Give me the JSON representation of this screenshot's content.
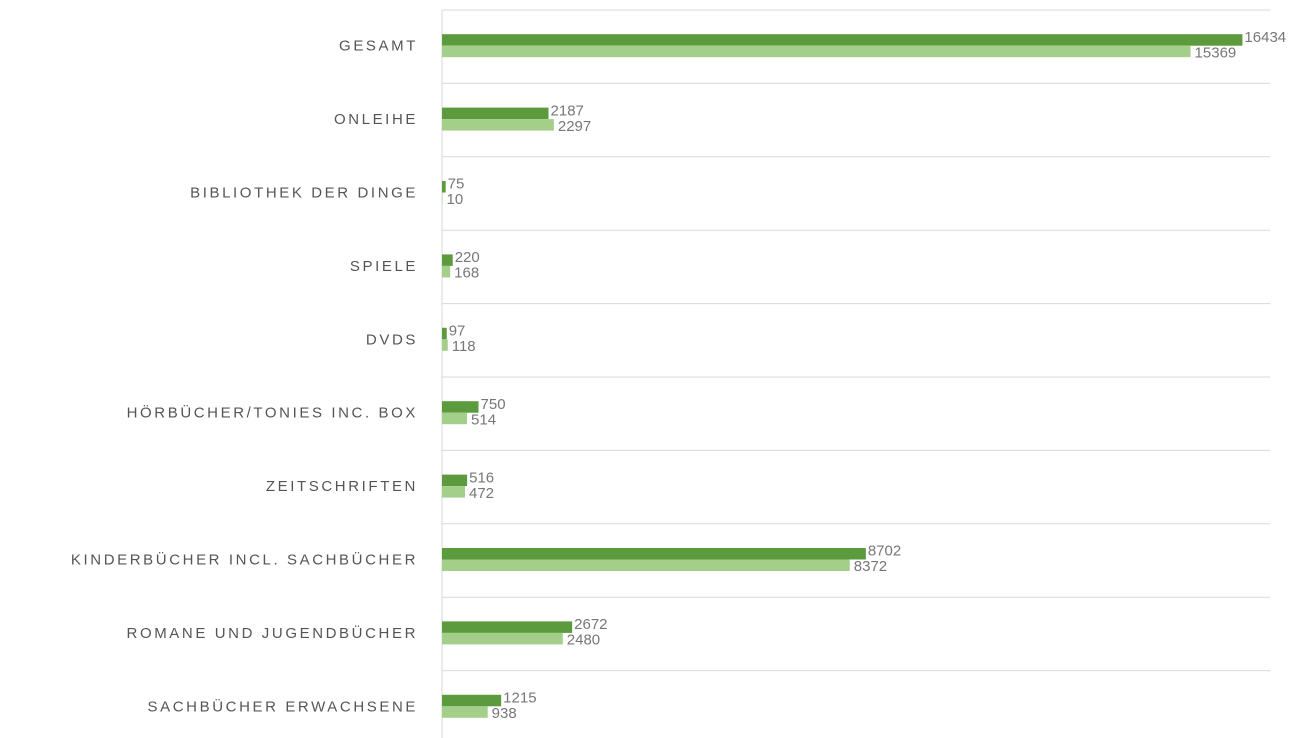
{
  "chart_data": {
    "type": "bar",
    "orientation": "horizontal",
    "categories": [
      "GESAMT",
      "ONLEIHE",
      "BIBLIOTHEK DER DINGE",
      "SPIELE",
      "DVDS",
      "HÖRBÜCHER/TONIES INC. BOX",
      "ZEITSCHRIFTEN",
      "KINDERBÜCHER INCL. SACHBÜCHER",
      "ROMANE UND JUGENDBÜCHER",
      "SACHBÜCHER ERWACHSENE"
    ],
    "series": [
      {
        "color": "#5b9a3d",
        "values": [
          16434,
          2187,
          75,
          220,
          97,
          750,
          516,
          8702,
          2672,
          1215
        ]
      },
      {
        "color": "#a4cf8b",
        "values": [
          15369,
          2297,
          10,
          168,
          118,
          514,
          472,
          8372,
          2480,
          938
        ]
      }
    ],
    "xlim": [
      0,
      17000
    ],
    "grid": true
  }
}
